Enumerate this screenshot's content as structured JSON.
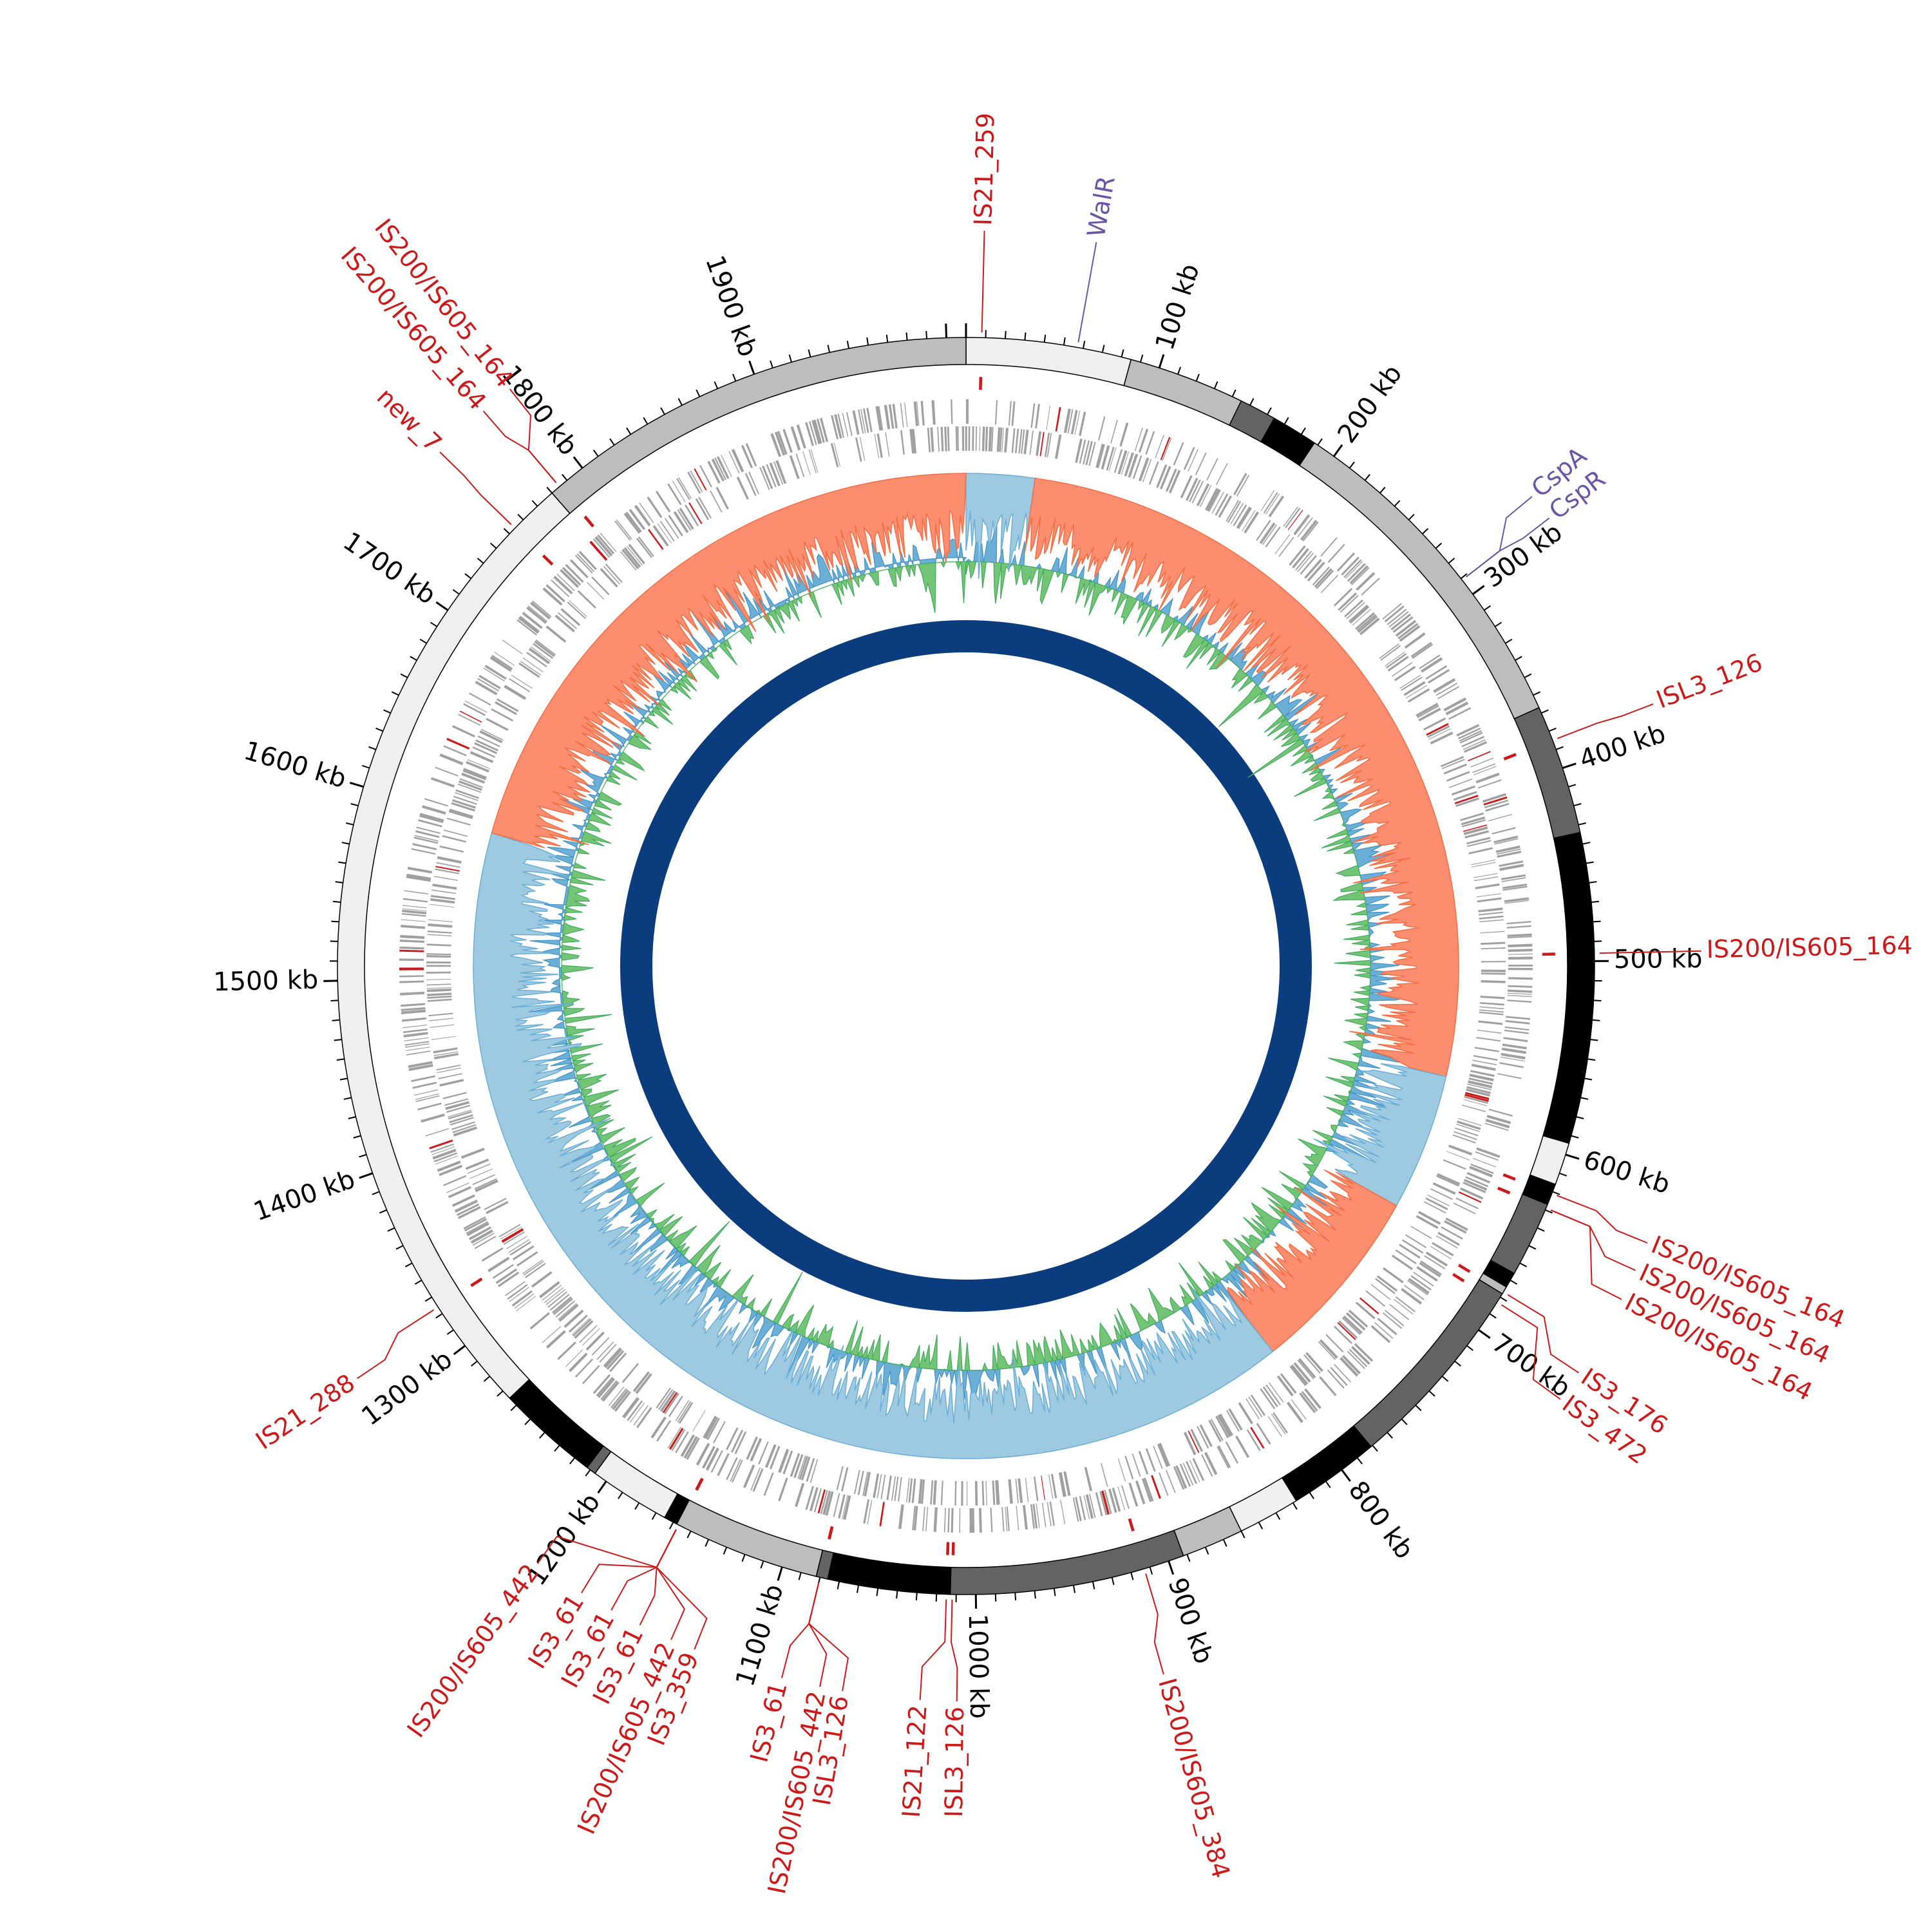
{
  "chart_data": {
    "type": "circular-genome-map",
    "genome_length_kb": 2010,
    "tick_labels": [
      {
        "kb": 100,
        "label": "100 kb"
      },
      {
        "kb": 200,
        "label": "200 kb"
      },
      {
        "kb": 300,
        "label": "300 kb"
      },
      {
        "kb": 400,
        "label": "400 kb"
      },
      {
        "kb": 500,
        "label": "500 kb"
      },
      {
        "kb": 600,
        "label": "600 kb"
      },
      {
        "kb": 700,
        "label": "700 kb"
      },
      {
        "kb": 800,
        "label": "800 kb"
      },
      {
        "kb": 900,
        "label": "900 kb"
      },
      {
        "kb": 1000,
        "label": "1000 kb"
      },
      {
        "kb": 1100,
        "label": "1100 kb"
      },
      {
        "kb": 1200,
        "label": "1200 kb"
      },
      {
        "kb": 1300,
        "label": "1300 kb"
      },
      {
        "kb": 1400,
        "label": "1400 kb"
      },
      {
        "kb": 1500,
        "label": "1500 kb"
      },
      {
        "kb": 1600,
        "label": "1600 kb"
      },
      {
        "kb": 1700,
        "label": "1700 kb"
      },
      {
        "kb": 1800,
        "label": "1800 kb"
      },
      {
        "kb": 1900,
        "label": "1900 kb"
      }
    ],
    "contig_segments": [
      {
        "start": 0,
        "end": 85,
        "color": "#efefef"
      },
      {
        "start": 85,
        "end": 145,
        "color": "#bdbdbd"
      },
      {
        "start": 145,
        "end": 164,
        "color": "#636363"
      },
      {
        "start": 164,
        "end": 188,
        "color": "#000000"
      },
      {
        "start": 188,
        "end": 367,
        "color": "#bdbdbd"
      },
      {
        "start": 367,
        "end": 434,
        "color": "#636363"
      },
      {
        "start": 434,
        "end": 594,
        "color": "#000000"
      },
      {
        "start": 594,
        "end": 616,
        "color": "#efefef"
      },
      {
        "start": 616,
        "end": 627,
        "color": "#000000"
      },
      {
        "start": 627,
        "end": 666,
        "color": "#636363"
      },
      {
        "start": 666,
        "end": 674,
        "color": "#000000"
      },
      {
        "start": 674,
        "end": 678,
        "color": "#bdbdbd"
      },
      {
        "start": 678,
        "end": 781,
        "color": "#636363"
      },
      {
        "start": 781,
        "end": 828,
        "color": "#000000"
      },
      {
        "start": 828,
        "end": 860,
        "color": "#efefef"
      },
      {
        "start": 860,
        "end": 892,
        "color": "#bdbdbd"
      },
      {
        "start": 892,
        "end": 1013,
        "color": "#636363"
      },
      {
        "start": 1013,
        "end": 1076,
        "color": "#000000"
      },
      {
        "start": 1076,
        "end": 1082,
        "color": "#636363"
      },
      {
        "start": 1082,
        "end": 1158,
        "color": "#bdbdbd"
      },
      {
        "start": 1158,
        "end": 1165,
        "color": "#000000"
      },
      {
        "start": 1165,
        "end": 1207,
        "color": "#efefef"
      },
      {
        "start": 1207,
        "end": 1212,
        "color": "#636363"
      },
      {
        "start": 1212,
        "end": 1265,
        "color": "#000000"
      },
      {
        "start": 1265,
        "end": 1780,
        "color": "#efefef"
      },
      {
        "start": 1780,
        "end": 2010,
        "color": "#bdbdbd"
      }
    ],
    "gc_skew_sign_segments": [
      {
        "start": 0,
        "end": 45,
        "sign": "negative"
      },
      {
        "start": 45,
        "end": 575,
        "sign": "positive"
      },
      {
        "start": 575,
        "end": 665,
        "sign": "negative"
      },
      {
        "start": 665,
        "end": 790,
        "sign": "positive"
      },
      {
        "start": 790,
        "end": 1595,
        "sign": "negative"
      },
      {
        "start": 1595,
        "end": 2010,
        "sign": "positive"
      }
    ],
    "colors": {
      "is_element": "#cc1a1a",
      "gene_annotation": "#6a55a8",
      "skew_positive": "#fc8d6e",
      "skew_negative": "#9ecae1",
      "gc_content_positive": "#74c476",
      "gc_content_negative": "#6baed6",
      "inner_ring": "#0b3d7e",
      "genes": "#a0a0a0"
    },
    "annotations": [
      {
        "label": "IS21_259",
        "kb": 8,
        "label_kb": 8,
        "kind": "is"
      },
      {
        "label": "WalR",
        "kb": 57,
        "label_kb": 57,
        "kind": "gene"
      },
      {
        "label": "CspA",
        "kb": 291,
        "label_kb": 281,
        "kind": "gene"
      },
      {
        "label": "CspR",
        "kb": 291,
        "label_kb": 293,
        "kind": "gene"
      },
      {
        "label": "ISL3_126",
        "kb": 385,
        "label_kb": 386,
        "kind": "is"
      },
      {
        "label": "IS200/IS605_164",
        "kb": 496,
        "label_kb": 496,
        "kind": "is"
      },
      {
        "label": "IS200/IS605_164",
        "kb": 621,
        "label_kb": 626,
        "kind": "is"
      },
      {
        "label": "IS200/IS605_164",
        "kb": 629,
        "label_kb": 639,
        "kind": "is"
      },
      {
        "label": "IS200/IS605_164",
        "kb": 629,
        "label_kb": 653,
        "kind": "is"
      },
      {
        "label": "IS3_176",
        "kb": 677,
        "label_kb": 690,
        "kind": "is"
      },
      {
        "label": "IS3_472",
        "kb": 683,
        "label_kb": 704,
        "kind": "is"
      },
      {
        "label": "IS200/IS605_384",
        "kb": 913,
        "label_kb": 918,
        "kind": "is"
      },
      {
        "label": "ISL3_126",
        "kb": 1012,
        "label_kb": 1009,
        "kind": "is"
      },
      {
        "label": "IS21_122",
        "kb": 1015,
        "label_kb": 1025,
        "kind": "is"
      },
      {
        "label": "ISL3_126",
        "kb": 1080,
        "label_kb": 1059,
        "kind": "is"
      },
      {
        "label": "IS200/IS605_442",
        "kb": 1080,
        "label_kb": 1069,
        "kind": "is"
      },
      {
        "label": "IS3_61",
        "kb": 1080,
        "label_kb": 1086,
        "kind": "is"
      },
      {
        "label": "IS3_359",
        "kb": 1157,
        "label_kb": 1126,
        "kind": "is"
      },
      {
        "label": "IS200/IS605_442",
        "kb": 1157,
        "label_kb": 1137,
        "kind": "is"
      },
      {
        "label": "IS3_61",
        "kb": 1157,
        "label_kb": 1152,
        "kind": "is"
      },
      {
        "label": "IS3_61",
        "kb": 1157,
        "label_kb": 1166,
        "kind": "is"
      },
      {
        "label": "IS3_61",
        "kb": 1157,
        "label_kb": 1181,
        "kind": "is"
      },
      {
        "label": "IS200/IS605_442",
        "kb": 1157,
        "label_kb": 1204,
        "kind": "is"
      },
      {
        "label": "IS21_288",
        "kb": 1324,
        "label_kb": 1317,
        "kind": "is"
      },
      {
        "label": "new_7",
        "kb": 1754,
        "label_kb": 1755,
        "kind": "is"
      },
      {
        "label": "IS200/IS605_164",
        "kb": 1785,
        "label_kb": 1781,
        "kind": "is"
      },
      {
        "label": "IS200/IS605_164",
        "kb": 1785,
        "label_kb": 1796,
        "kind": "is"
      }
    ]
  }
}
